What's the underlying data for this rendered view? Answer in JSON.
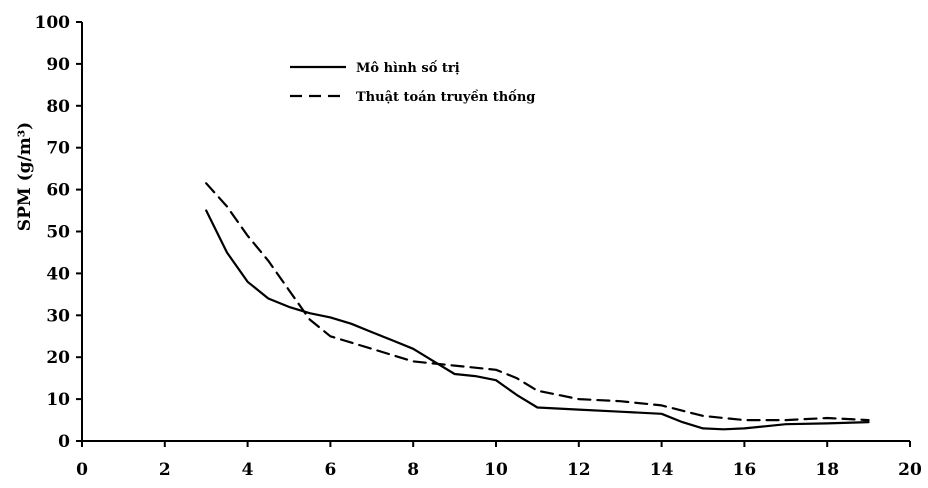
{
  "chart_data": {
    "type": "line",
    "title": "",
    "xlabel": "",
    "ylabel": "SPM (g/m³)",
    "xlim": [
      0,
      20
    ],
    "ylim": [
      0,
      100
    ],
    "xticks": [
      0,
      2,
      4,
      6,
      8,
      10,
      12,
      14,
      16,
      18,
      20
    ],
    "yticks": [
      0,
      10,
      20,
      30,
      40,
      50,
      60,
      70,
      80,
      90,
      100
    ],
    "grid": false,
    "legend_position": "top-center",
    "series": [
      {
        "name": "Mô hình số trị",
        "style": "solid",
        "color": "#000000",
        "x": [
          3,
          3.5,
          4,
          4.5,
          5,
          5.5,
          6,
          6.5,
          7,
          7.5,
          8,
          8.5,
          9,
          9.5,
          10,
          10.5,
          11,
          12,
          13,
          14,
          14.5,
          15,
          15.5,
          16,
          16.5,
          17,
          18,
          19
        ],
        "y": [
          55,
          45,
          38,
          34,
          32,
          30.5,
          29.5,
          28,
          26,
          24,
          22,
          19,
          16,
          15.5,
          14.5,
          11,
          8,
          7.5,
          7,
          6.5,
          4.5,
          3,
          2.8,
          3,
          3.5,
          4,
          4.2,
          4.5
        ]
      },
      {
        "name": "Thuật toán truyền thống",
        "style": "dashed",
        "color": "#000000",
        "x": [
          3,
          3.5,
          4,
          4.5,
          5,
          5.5,
          6,
          7,
          8,
          9,
          10,
          10.5,
          11,
          11.5,
          12,
          13,
          14,
          15,
          16,
          17,
          18,
          19
        ],
        "y": [
          61.5,
          56,
          49,
          43,
          36,
          29,
          25,
          22,
          19,
          18,
          17,
          15,
          12,
          11,
          10,
          9.5,
          8.5,
          6,
          5,
          5,
          5.5,
          5
        ]
      }
    ]
  }
}
